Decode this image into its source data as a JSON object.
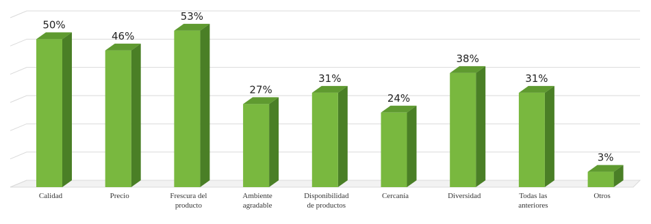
{
  "chart_data": {
    "type": "bar",
    "categories": [
      "Calidad",
      "Precio",
      "Frescura del producto",
      "Ambiente agradable",
      "Disponibilidad de productos",
      "Cercanía",
      "Diversidad",
      "Todas las anteriores",
      "Otros"
    ],
    "category_lines": [
      [
        "Calidad"
      ],
      [
        "Precio"
      ],
      [
        "Frescura del",
        "producto"
      ],
      [
        "Ambiente",
        "agradable"
      ],
      [
        "Disponibilidad",
        "de productos"
      ],
      [
        "Cercanía"
      ],
      [
        "Diversidad"
      ],
      [
        "Todas las",
        "anteriores"
      ],
      [
        "Otros"
      ]
    ],
    "values": [
      50,
      46,
      53,
      27,
      31,
      24,
      38,
      31,
      3
    ],
    "labels": [
      "50%",
      "46%",
      "53%",
      "27%",
      "31%",
      "24%",
      "38%",
      "31%",
      "3%"
    ],
    "unit": "%",
    "ylim": [
      0,
      60
    ],
    "grid": true,
    "legend": "none",
    "title": "",
    "xlabel": "",
    "ylabel": "",
    "colors": {
      "bar_front": "#79b83f",
      "bar_side": "#4a7f26",
      "bar_top": "#5f9a30",
      "grid": "#d9d9d9"
    }
  }
}
